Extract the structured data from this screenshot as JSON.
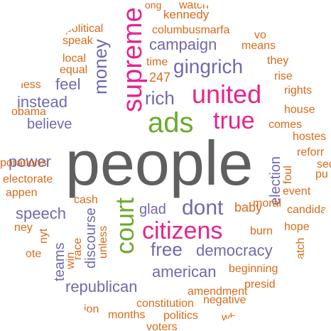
{
  "palette": {
    "gray": "#5f5f5f",
    "orange": "#d86a1a",
    "purple": "#6f6aac",
    "magenta": "#e5248d",
    "green": "#6aab2a"
  },
  "words": [
    {
      "text": "people",
      "color": "gray"
    },
    {
      "text": "supreme",
      "color": "magenta"
    },
    {
      "text": "united",
      "color": "magenta"
    },
    {
      "text": "true",
      "color": "magenta"
    },
    {
      "text": "ads",
      "color": "green"
    },
    {
      "text": "court",
      "color": "green"
    },
    {
      "text": "citizens",
      "color": "magenta"
    },
    {
      "text": "gingrich",
      "color": "purple"
    },
    {
      "text": "money",
      "color": "purple"
    },
    {
      "text": "campaign",
      "color": "purple"
    },
    {
      "text": "rich",
      "color": "purple"
    },
    {
      "text": "dont",
      "color": "purple"
    },
    {
      "text": "free",
      "color": "purple"
    },
    {
      "text": "democracy",
      "color": "purple"
    },
    {
      "text": "american",
      "color": "purple"
    },
    {
      "text": "republican",
      "color": "purple"
    },
    {
      "text": "speech",
      "color": "purple"
    },
    {
      "text": "power",
      "color": "purple"
    },
    {
      "text": "believe",
      "color": "purple"
    },
    {
      "text": "instead",
      "color": "purple"
    },
    {
      "text": "feel",
      "color": "purple"
    },
    {
      "text": "glad",
      "color": "purple"
    },
    {
      "text": "discourse",
      "color": "purple"
    },
    {
      "text": "teams",
      "color": "purple"
    },
    {
      "text": "election",
      "color": "purple"
    },
    {
      "text": "kennedy",
      "color": "orange"
    },
    {
      "text": "watch",
      "color": "orange"
    },
    {
      "text": "columbusmarfa",
      "color": "orange"
    },
    {
      "text": "political",
      "color": "orange"
    },
    {
      "text": "speak",
      "color": "orange"
    },
    {
      "text": "local",
      "color": "orange"
    },
    {
      "text": "equal",
      "color": "orange"
    },
    {
      "text": "ness",
      "color": "orange"
    },
    {
      "text": "obama",
      "color": "orange"
    },
    {
      "text": "means",
      "color": "orange"
    },
    {
      "text": "they",
      "color": "orange"
    },
    {
      "text": "vo",
      "color": "orange"
    },
    {
      "text": "time",
      "color": "orange"
    },
    {
      "text": "247",
      "color": "orange"
    },
    {
      "text": "rise",
      "color": "orange"
    },
    {
      "text": "rights",
      "color": "orange"
    },
    {
      "text": "house",
      "color": "orange"
    },
    {
      "text": "comes",
      "color": "orange"
    },
    {
      "text": "hostes",
      "color": "orange"
    },
    {
      "text": "reforr",
      "color": "orange"
    },
    {
      "text": "sec",
      "color": "orange"
    },
    {
      "text": "pu",
      "color": "orange"
    },
    {
      "text": "porations",
      "color": "orange"
    },
    {
      "text": "electorate",
      "color": "orange"
    },
    {
      "text": "appen",
      "color": "orange"
    },
    {
      "text": "cash",
      "color": "orange"
    },
    {
      "text": "ney",
      "color": "orange"
    },
    {
      "text": "nyt",
      "color": "orange"
    },
    {
      "text": "ote",
      "color": "orange"
    },
    {
      "text": "win",
      "color": "orange"
    },
    {
      "text": "race",
      "color": "orange"
    },
    {
      "text": "unless",
      "color": "orange"
    },
    {
      "text": "foul",
      "color": "orange"
    },
    {
      "text": "event",
      "color": "orange"
    },
    {
      "text": "moral",
      "color": "orange"
    },
    {
      "text": "baby",
      "color": "orange"
    },
    {
      "text": "candidate",
      "color": "orange"
    },
    {
      "text": "burn",
      "color": "orange"
    },
    {
      "text": "hope",
      "color": "orange"
    },
    {
      "text": "atch",
      "color": "orange"
    },
    {
      "text": "beginning",
      "color": "orange"
    },
    {
      "text": "presid",
      "color": "orange"
    },
    {
      "text": "amendment",
      "color": "orange"
    },
    {
      "text": "negative",
      "color": "orange"
    },
    {
      "text": "constitution",
      "color": "orange"
    },
    {
      "text": "ion",
      "color": "orange"
    },
    {
      "text": "months",
      "color": "orange"
    },
    {
      "text": "politics",
      "color": "orange"
    },
    {
      "text": "wha",
      "color": "orange"
    },
    {
      "text": "voters",
      "color": "orange"
    },
    {
      "text": "ong",
      "color": "orange"
    }
  ]
}
